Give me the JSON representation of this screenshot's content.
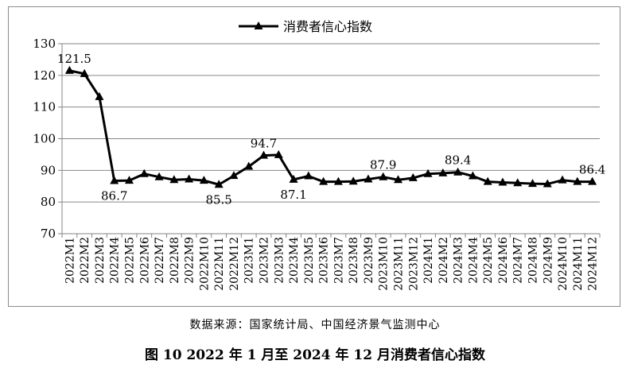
{
  "source_text": "数据来源：国家统计局、中国经济景气监测中心",
  "caption": "图 10  2022 年 1 月至 2024 年 12 月消费者信心指数",
  "chart_data": {
    "type": "line",
    "legend_position": "top",
    "grid": true,
    "ylim": [
      70,
      130
    ],
    "yticks": [
      70,
      80,
      90,
      100,
      110,
      120,
      130
    ],
    "categories": [
      "2022M1",
      "2022M2",
      "2022M3",
      "2022M4",
      "2022M5",
      "2022M6",
      "2022M7",
      "2022M8",
      "2022M9",
      "2022M10",
      "2022M11",
      "2022M12",
      "2023M1",
      "2023M2",
      "2023M3",
      "2023M4",
      "2023M5",
      "2023M6",
      "2023M7",
      "2023M8",
      "2023M9",
      "2023M10",
      "2023M11",
      "2023M12",
      "2024M1",
      "2024M2",
      "2024M3",
      "2024M4",
      "2024M5",
      "2024M6",
      "2024M7",
      "2024M8",
      "2024M9",
      "2024M10",
      "2024M11",
      "2024M12"
    ],
    "series": [
      {
        "name": "消费者信心指数",
        "color": "#000000",
        "values": [
          121.5,
          120.5,
          113.2,
          86.7,
          86.8,
          88.9,
          87.9,
          87.0,
          87.2,
          86.8,
          85.5,
          88.3,
          91.2,
          94.7,
          94.9,
          87.1,
          88.2,
          86.4,
          86.4,
          86.5,
          87.2,
          87.9,
          87.0,
          87.6,
          88.9,
          89.1,
          89.4,
          88.2,
          86.4,
          86.2,
          86.0,
          85.8,
          85.7,
          86.9,
          86.4,
          86.4
        ]
      }
    ],
    "data_labels": [
      {
        "index": 0,
        "text": "121.5"
      },
      {
        "index": 3,
        "text": "86.7"
      },
      {
        "index": 10,
        "text": "85.5"
      },
      {
        "index": 13,
        "text": "94.7"
      },
      {
        "index": 15,
        "text": "87.1"
      },
      {
        "index": 21,
        "text": "87.9"
      },
      {
        "index": 26,
        "text": "89.4"
      },
      {
        "index": 35,
        "text": "86.4"
      }
    ]
  }
}
